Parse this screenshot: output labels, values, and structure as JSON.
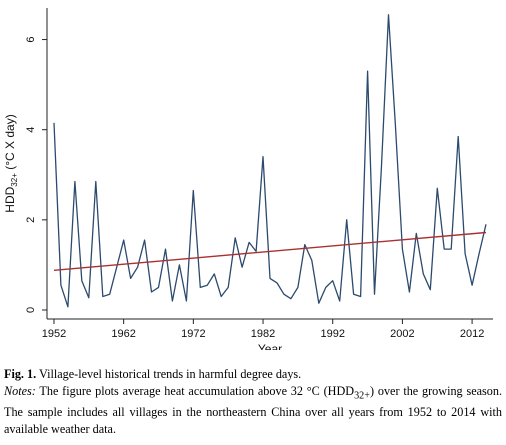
{
  "chart_data": {
    "type": "line",
    "xlabel": "Year",
    "ylabel_main": "HDD",
    "ylabel_sub": "32+",
    "ylabel_tail": " (°C X day)",
    "xlim": [
      1951,
      2015
    ],
    "ylim": [
      -0.2,
      6.7
    ],
    "x_ticks": [
      1952,
      1962,
      1972,
      1982,
      1992,
      2002,
      2012
    ],
    "y_ticks": [
      0,
      2,
      4,
      6
    ],
    "series": [
      {
        "color": "#2c4a6e",
        "x": [
          1952,
          1953,
          1954,
          1955,
          1956,
          1957,
          1958,
          1959,
          1960,
          1961,
          1962,
          1963,
          1964,
          1965,
          1966,
          1967,
          1968,
          1969,
          1970,
          1971,
          1972,
          1973,
          1974,
          1975,
          1976,
          1977,
          1978,
          1979,
          1980,
          1981,
          1982,
          1983,
          1984,
          1985,
          1986,
          1987,
          1988,
          1989,
          1990,
          1991,
          1992,
          1993,
          1994,
          1995,
          1996,
          1997,
          1998,
          1999,
          2000,
          2001,
          2002,
          2003,
          2004,
          2005,
          2006,
          2007,
          2008,
          2009,
          2010,
          2011,
          2012,
          2013,
          2014
        ],
        "y": [
          4.15,
          0.55,
          0.07,
          2.85,
          0.65,
          0.27,
          2.85,
          0.3,
          0.35,
          0.95,
          1.55,
          0.7,
          0.95,
          1.55,
          0.4,
          0.5,
          1.35,
          0.2,
          1.0,
          0.2,
          2.65,
          0.5,
          0.55,
          0.8,
          0.3,
          0.5,
          1.6,
          0.95,
          1.5,
          1.3,
          3.4,
          0.7,
          0.6,
          0.35,
          0.25,
          0.5,
          1.45,
          1.1,
          0.15,
          0.5,
          0.65,
          0.2,
          2.0,
          0.35,
          0.3,
          5.3,
          0.35,
          3.2,
          6.55,
          4.1,
          1.35,
          0.4,
          1.7,
          0.8,
          0.45,
          2.7,
          1.35,
          1.35,
          3.85,
          1.25,
          0.55,
          1.25,
          1.9
        ]
      },
      {
        "color": "#a83232",
        "x": [
          1952,
          2014
        ],
        "y": [
          0.88,
          1.72
        ]
      }
    ],
    "grid": false
  },
  "caption": {
    "fig_label": "Fig. 1.",
    "fig_title": "Village-level historical trends in harmful degree days.",
    "notes_label": "Notes:",
    "notes_before": "The figure plots average heat accumulation above 32 °C (HDD",
    "notes_sub": "32+",
    "notes_after": ") over the growing season. The sample includes all villages in the northeastern China over all years from 1952 to 2014 with available weather data."
  }
}
